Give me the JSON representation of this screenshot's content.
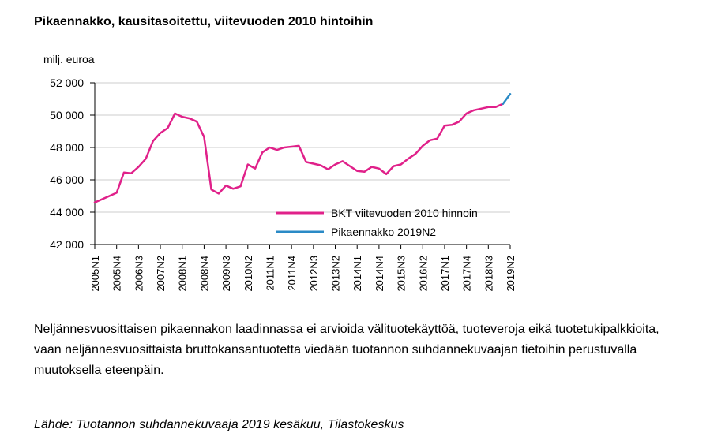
{
  "title": "Pikaennakko, kausitasoitettu, viitevuoden 2010 hintoihin",
  "description": "Neljännesvuosittaisen pikaennakon laadinnassa ei arvioida välituotekäyttöä, tuoteveroja eikä tuotetukipalkkioita, vaan neljännesvuosittaista bruttokansantuotetta viedään tuotannon suhdannekuvaajan tietoihin perustuvalla muutoksella eteenpäin.",
  "source": "Lähde: Tuotannon suhdannekuvaaja 2019 kesäkuu, Tilastokeskus",
  "chart_data": {
    "type": "line",
    "ylabel": "milj. euroa",
    "ylim": [
      42000,
      52000
    ],
    "yticks": [
      42000,
      44000,
      46000,
      48000,
      50000,
      52000
    ],
    "ytick_labels": [
      "42 000",
      "44 000",
      "46 000",
      "48 000",
      "50 000",
      "52 000"
    ],
    "xtick_labels": [
      "2005N1",
      "2005N4",
      "2006N3",
      "2007N2",
      "2008N1",
      "2008N4",
      "2009N3",
      "2010N2",
      "2011N1",
      "2011N4",
      "2012N3",
      "2013N2",
      "2014N1",
      "2014N4",
      "2015N3",
      "2016N2",
      "2017N1",
      "2017N4",
      "2018N3",
      "2019N2"
    ],
    "grid": true,
    "legend_position": "bottom-right",
    "colors": {
      "primary": "#e0218a",
      "forecast": "#2a8ac6",
      "axis": "#000000",
      "grid": "#cccccc"
    },
    "x": [
      "2005N1",
      "2005N2",
      "2005N3",
      "2005N4",
      "2006N1",
      "2006N2",
      "2006N3",
      "2006N4",
      "2007N1",
      "2007N2",
      "2007N3",
      "2007N4",
      "2008N1",
      "2008N2",
      "2008N3",
      "2008N4",
      "2009N1",
      "2009N2",
      "2009N3",
      "2009N4",
      "2010N1",
      "2010N2",
      "2010N3",
      "2010N4",
      "2011N1",
      "2011N2",
      "2011N3",
      "2011N4",
      "2012N1",
      "2012N2",
      "2012N3",
      "2012N4",
      "2013N1",
      "2013N2",
      "2013N3",
      "2013N4",
      "2014N1",
      "2014N2",
      "2014N3",
      "2014N4",
      "2015N1",
      "2015N2",
      "2015N3",
      "2015N4",
      "2016N1",
      "2016N2",
      "2016N3",
      "2016N4",
      "2017N1",
      "2017N2",
      "2017N3",
      "2017N4",
      "2018N1",
      "2018N2",
      "2018N3",
      "2018N4",
      "2019N1",
      "2019N2"
    ],
    "series": [
      {
        "name": "BKT viitevuoden 2010 hinnoin",
        "values": [
          44600,
          44800,
          45000,
          45200,
          46450,
          46400,
          46800,
          47300,
          48400,
          48900,
          49200,
          50100,
          49900,
          49800,
          49600,
          48650,
          45400,
          45150,
          45650,
          45450,
          45600,
          46950,
          46700,
          47700,
          48000,
          47850,
          48000,
          48050,
          48100,
          47100,
          47000,
          46900,
          46650,
          46950,
          47150,
          46850,
          46550,
          46500,
          46800,
          46700,
          46350,
          46850,
          46950,
          47300,
          47600,
          48100,
          48450,
          48550,
          49350,
          49400,
          49600,
          50100,
          50300,
          50400,
          50500,
          50500,
          50700,
          null
        ],
        "color": "#e0218a"
      },
      {
        "name": "Pikaennakko 2019N2",
        "values": [
          null,
          null,
          null,
          null,
          null,
          null,
          null,
          null,
          null,
          null,
          null,
          null,
          null,
          null,
          null,
          null,
          null,
          null,
          null,
          null,
          null,
          null,
          null,
          null,
          null,
          null,
          null,
          null,
          null,
          null,
          null,
          null,
          null,
          null,
          null,
          null,
          null,
          null,
          null,
          null,
          null,
          null,
          null,
          null,
          null,
          null,
          null,
          null,
          null,
          null,
          null,
          null,
          null,
          null,
          null,
          null,
          50700,
          51300
        ],
        "color": "#2a8ac6"
      }
    ]
  }
}
